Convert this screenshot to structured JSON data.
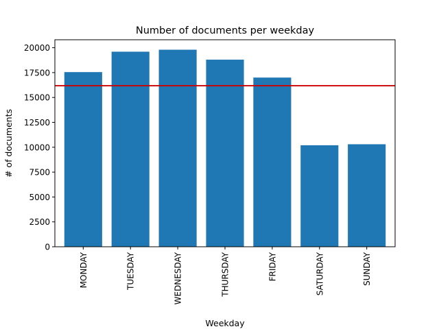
{
  "chart_data": {
    "type": "bar",
    "title": "Number of documents per weekday",
    "xlabel": "Weekday",
    "ylabel": "# of documents",
    "categories": [
      "MONDAY",
      "TUESDAY",
      "WEDNESDAY",
      "THURSDAY",
      "FRIDAY",
      "SATURDAY",
      "SUNDAY"
    ],
    "values": [
      17550,
      19600,
      19800,
      18800,
      17000,
      10200,
      10300
    ],
    "ylim": [
      0,
      20800
    ],
    "yticks": [
      0,
      2500,
      5000,
      7500,
      10000,
      12500,
      15000,
      17500,
      20000
    ],
    "reference_line": {
      "value": 16180,
      "color": "#cc0000"
    },
    "bar_color": "#1f77b4",
    "grid": false,
    "legend": "none"
  }
}
